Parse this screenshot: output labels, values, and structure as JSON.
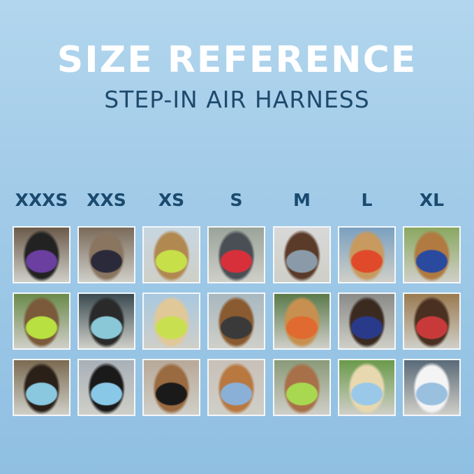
{
  "header": {
    "title": "SIZE REFERENCE",
    "subtitle": "STEP-IN AIR HARNESS"
  },
  "sizes": [
    "XXXS",
    "XXS",
    "XS",
    "S",
    "M",
    "L",
    "XL"
  ],
  "photos": [
    [
      [
        "#6b5a4a",
        "#222222",
        "#6a3fa0"
      ],
      [
        "#7a6a5a",
        "#8a7560",
        "#2a2a3a"
      ],
      [
        "#c8d6e0",
        "#b08850",
        "#c7e04a"
      ],
      [
        "#9aa49a",
        "#4a4f55",
        "#d8303a"
      ],
      [
        "#d8d8d8",
        "#5a3a28",
        "#8a9aa8"
      ],
      [
        "#7aa0c0",
        "#c89a60",
        "#e04a2a"
      ],
      [
        "#8aa860",
        "#b07a40",
        "#2a4aa0"
      ]
    ],
    [
      [
        "#6a8a4a",
        "#7a5a3a",
        "#b8e040"
      ],
      [
        "#3a4a50",
        "#2a2a2a",
        "#8ac8d8"
      ],
      [
        "#a8c8e0",
        "#e0c898",
        "#c8e050"
      ],
      [
        "#a8b8c0",
        "#8a5a30",
        "#3a3a3a"
      ],
      [
        "#5a7a4a",
        "#c89050",
        "#e06a30"
      ],
      [
        "#8a8a88",
        "#3a2a20",
        "#2a3a8a"
      ],
      [
        "#9a7a50",
        "#4a3020",
        "#c83a3a"
      ]
    ],
    [
      [
        "#7a6a50",
        "#2a2018",
        "#8ac8e0"
      ],
      [
        "#a8b0b8",
        "#1a1a1a",
        "#8ac8e8"
      ],
      [
        "#b8a898",
        "#9a6a40",
        "#1a1a1a"
      ],
      [
        "#c8c0b8",
        "#b87840",
        "#8ab0d8"
      ],
      [
        "#8a9a78",
        "#a87048",
        "#a8d850"
      ],
      [
        "#6a9a4a",
        "#e8d8b0",
        "#9ac8e8"
      ],
      [
        "#5a6a78",
        "#f4f4f4",
        "#9ac0e0"
      ]
    ]
  ]
}
